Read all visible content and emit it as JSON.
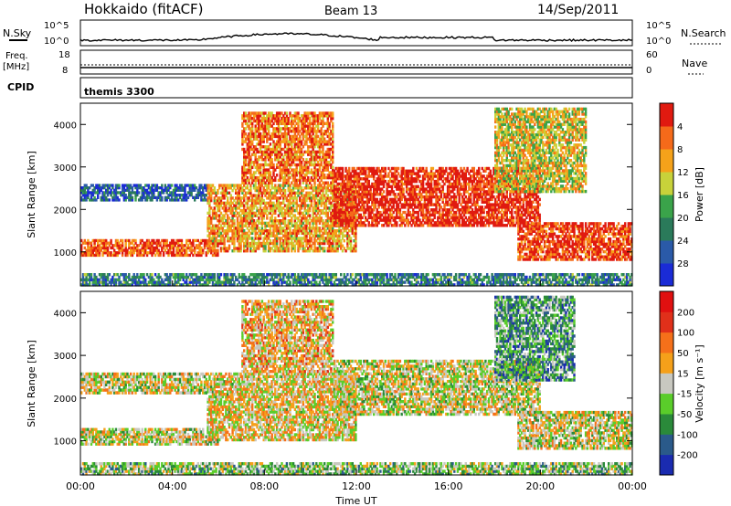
{
  "header": {
    "station": "Hokkaido (fitACF)",
    "beam": "Beam 13",
    "date": "14/Sep/2011"
  },
  "top_panels": {
    "nsky_label": "N.Sky",
    "nsky_ticks": [
      "10^5",
      "10^0"
    ],
    "nsearch_label": "N.Search",
    "freq_label_1": "Freq.",
    "freq_label_2": "[MHz]",
    "freq_ticks": [
      "18",
      "8"
    ],
    "nave_label": "Nave",
    "nave_ticks": [
      "60",
      "0"
    ],
    "cpid_label": "CPID",
    "cpid_value": "themis 3300"
  },
  "chart_data": [
    {
      "type": "heatmap",
      "panel": "power",
      "ylabel": "Slant Range [km]",
      "y_ticks": [
        1000,
        2000,
        3000,
        4000
      ],
      "ylim": [
        200,
        4500
      ],
      "xlabel": "Time UT",
      "x_ticks": [
        "00:00",
        "04:00",
        "08:00",
        "12:00",
        "16:00",
        "20:00",
        "00:00"
      ],
      "colorbar_label": "Power [dB]",
      "colorbar_ticks": [
        "4",
        "8",
        "12",
        "16",
        "20",
        "24",
        "28"
      ],
      "colors": [
        "#1a2bd6",
        "#2a5aa8",
        "#2a7a5a",
        "#3aa34a",
        "#c8d23a",
        "#f5a21a",
        "#f56a1a",
        "#e01a10"
      ],
      "echo_bands": [
        {
          "t0": 0.0,
          "t1": 6.0,
          "r0": 900,
          "r1": 1300,
          "level": 0.85
        },
        {
          "t0": 0.0,
          "t1": 5.5,
          "r0": 2200,
          "r1": 2600,
          "level": 0.2
        },
        {
          "t0": 5.5,
          "t1": 12.0,
          "r0": 1000,
          "r1": 2600,
          "level": 0.7
        },
        {
          "t0": 11.0,
          "t1": 20.0,
          "r0": 1600,
          "r1": 3000,
          "level": 0.95
        },
        {
          "t0": 19.0,
          "t1": 24.0,
          "r0": 800,
          "r1": 1700,
          "level": 0.9
        },
        {
          "t0": 7.0,
          "t1": 11.0,
          "r0": 2600,
          "r1": 4300,
          "level": 0.8
        },
        {
          "t0": 18.0,
          "t1": 22.0,
          "r0": 2400,
          "r1": 4400,
          "level": 0.6
        },
        {
          "t0": 0.0,
          "t1": 24.0,
          "r0": 200,
          "r1": 500,
          "level": 0.3
        }
      ]
    },
    {
      "type": "heatmap",
      "panel": "velocity",
      "ylabel": "Slant Range [km]",
      "y_ticks": [
        1000,
        2000,
        3000,
        4000
      ],
      "ylim": [
        200,
        4500
      ],
      "xlabel": "Time UT",
      "x_ticks": [
        "00:00",
        "04:00",
        "08:00",
        "12:00",
        "16:00",
        "20:00",
        "00:00"
      ],
      "colorbar_label": "Velocity [m s⁻¹]",
      "colorbar_ticks": [
        "200",
        "100",
        "50",
        "15",
        "-15",
        "-50",
        "-100",
        "-200"
      ],
      "colors": [
        "#1a2bb0",
        "#2a5a8a",
        "#2a8a3a",
        "#5acd2a",
        "#c8c8c0",
        "#f5a01a",
        "#f5701a",
        "#e0301a",
        "#e01010"
      ],
      "echo_bands": [
        {
          "t0": 0.0,
          "t1": 6.0,
          "r0": 900,
          "r1": 1300,
          "level": 0.5
        },
        {
          "t0": 0.0,
          "t1": 5.5,
          "r0": 2100,
          "r1": 2600,
          "level": 0.5
        },
        {
          "t0": 5.5,
          "t1": 12.0,
          "r0": 1000,
          "r1": 2600,
          "level": 0.55
        },
        {
          "t0": 11.0,
          "t1": 20.0,
          "r0": 1600,
          "r1": 2900,
          "level": 0.5
        },
        {
          "t0": 19.0,
          "t1": 24.0,
          "r0": 800,
          "r1": 1700,
          "level": 0.5
        },
        {
          "t0": 7.0,
          "t1": 11.0,
          "r0": 2600,
          "r1": 4300,
          "level": 0.6
        },
        {
          "t0": 18.0,
          "t1": 21.5,
          "r0": 2400,
          "r1": 4400,
          "level": 0.3
        },
        {
          "t0": 0.0,
          "t1": 24.0,
          "r0": 200,
          "r1": 500,
          "level": 0.4
        }
      ]
    }
  ]
}
